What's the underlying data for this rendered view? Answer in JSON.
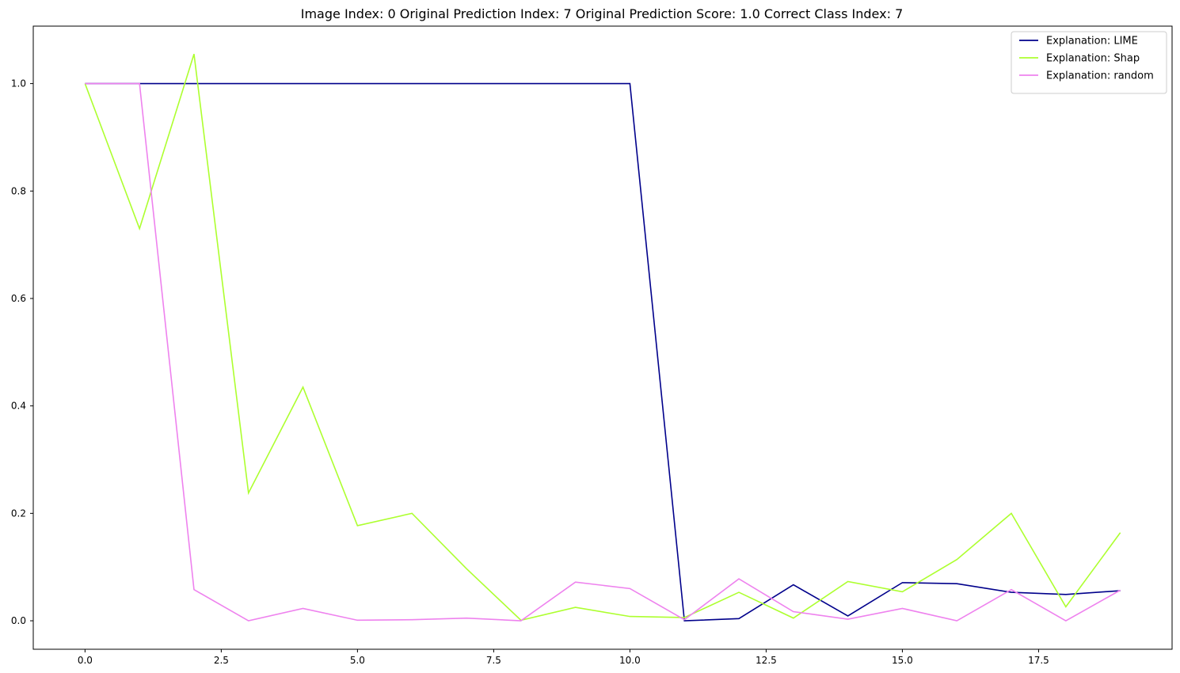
{
  "chart_data": {
    "type": "line",
    "title": "Image Index: 0 Original Prediction Index: 7 Original Prediction Score: 1.0 Correct Class Index: 7",
    "xlabel": "",
    "ylabel": "",
    "xlim": [
      -0.95,
      19.95
    ],
    "ylim": [
      -0.053,
      1.107
    ],
    "xticks": [
      0.0,
      2.5,
      5.0,
      7.5,
      10.0,
      12.5,
      15.0,
      17.5
    ],
    "xtick_labels": [
      "0.0",
      "2.5",
      "5.0",
      "7.5",
      "10.0",
      "12.5",
      "15.0",
      "17.5"
    ],
    "yticks": [
      0.0,
      0.2,
      0.4,
      0.6,
      0.8,
      1.0
    ],
    "ytick_labels": [
      "0.0",
      "0.2",
      "0.4",
      "0.6",
      "0.8",
      "1.0"
    ],
    "grid": false,
    "legend": "top-right",
    "x": [
      0,
      1,
      2,
      3,
      4,
      5,
      6,
      7,
      8,
      9,
      10,
      11,
      12,
      13,
      14,
      15,
      16,
      17,
      18,
      19
    ],
    "series": [
      {
        "name": "Explanation: LIME",
        "color": "#00008b",
        "values": [
          1.0,
          1.0,
          1.0,
          1.0,
          1.0,
          1.0,
          1.0,
          1.0,
          1.0,
          1.0,
          1.0,
          0.0,
          0.004,
          0.067,
          0.009,
          0.071,
          0.069,
          0.053,
          0.049,
          0.056
        ]
      },
      {
        "name": "Explanation: Shap",
        "color": "#adff2f",
        "values": [
          1.0,
          0.73,
          1.055,
          0.238,
          0.435,
          0.177,
          0.2,
          0.097,
          0.001,
          0.025,
          0.008,
          0.006,
          0.053,
          0.005,
          0.073,
          0.054,
          0.114,
          0.2,
          0.026,
          0.164
        ]
      },
      {
        "name": "Explanation: random",
        "color": "#ee82ee",
        "values": [
          1.0,
          1.0,
          0.058,
          0.0,
          0.023,
          0.001,
          0.002,
          0.005,
          0.0,
          0.072,
          0.06,
          0.002,
          0.078,
          0.017,
          0.003,
          0.023,
          0.0,
          0.058,
          0.0,
          0.057
        ]
      }
    ]
  }
}
